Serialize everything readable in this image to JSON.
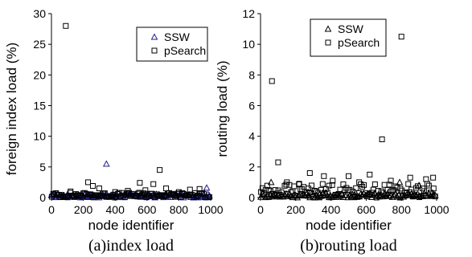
{
  "chart_data": [
    {
      "type": "scatter",
      "caption": "(a)index load",
      "xlabel": "node identifier",
      "ylabel": "foreign index load (%)",
      "xlim": [
        0,
        1000
      ],
      "ylim": [
        0,
        30
      ],
      "xticks": [
        0,
        200,
        400,
        600,
        800,
        1000
      ],
      "yticks": [
        0,
        5,
        10,
        15,
        20,
        25,
        30
      ],
      "legend_position": "top-right",
      "series": [
        {
          "name": "SSW",
          "marker": "triangle",
          "color": "#1f1f8f",
          "baseline_band": [
            0,
            0.6
          ],
          "points": [
            [
              345,
              5.5
            ],
            [
              975,
              1.6
            ],
            [
              990,
              0.2
            ]
          ]
        },
        {
          "name": "pSearch",
          "marker": "square",
          "color": "#000000",
          "baseline_band": [
            0,
            0.8
          ],
          "points": [
            [
              90,
              28.0
            ],
            [
              680,
              4.5
            ],
            [
              230,
              2.5
            ],
            [
              555,
              2.4
            ],
            [
              640,
              2.2
            ],
            [
              260,
              1.9
            ],
            [
              300,
              1.5
            ],
            [
              870,
              1.3
            ],
            [
              930,
              1.4
            ],
            [
              720,
              1.5
            ],
            [
              120,
              1.0
            ],
            [
              400,
              0.9
            ],
            [
              480,
              1.1
            ],
            [
              590,
              1.2
            ],
            [
              800,
              0.9
            ]
          ]
        }
      ]
    },
    {
      "type": "scatter",
      "caption": "(b)routing load",
      "xlabel": "node identifier",
      "ylabel": "routing load (%)",
      "xlim": [
        0,
        1000
      ],
      "ylim": [
        0,
        12
      ],
      "xticks": [
        0,
        200,
        400,
        600,
        800,
        1000
      ],
      "yticks": [
        0,
        2,
        4,
        6,
        8,
        10,
        12
      ],
      "legend_position": "top-right",
      "series": [
        {
          "name": "SSW",
          "marker": "triangle",
          "color": "#000000",
          "baseline_band": [
            0,
            0.3
          ],
          "points": [
            [
              60,
              1.0
            ],
            [
              790,
              1.0
            ],
            [
              900,
              0.8
            ]
          ]
        },
        {
          "name": "pSearch",
          "marker": "square",
          "color": "#000000",
          "baseline_band": [
            0,
            0.9
          ],
          "points": [
            [
              800,
              10.5
            ],
            [
              65,
              7.6
            ],
            [
              690,
              3.8
            ],
            [
              100,
              2.3
            ],
            [
              280,
              1.6
            ],
            [
              360,
              1.4
            ],
            [
              500,
              1.4
            ],
            [
              620,
              1.5
            ],
            [
              850,
              1.3
            ],
            [
              980,
              1.3
            ],
            [
              410,
              1.1
            ],
            [
              150,
              1.0
            ],
            [
              740,
              1.1
            ],
            [
              940,
              1.2
            ],
            [
              220,
              0.9
            ],
            [
              560,
              1.0
            ]
          ]
        }
      ]
    }
  ]
}
